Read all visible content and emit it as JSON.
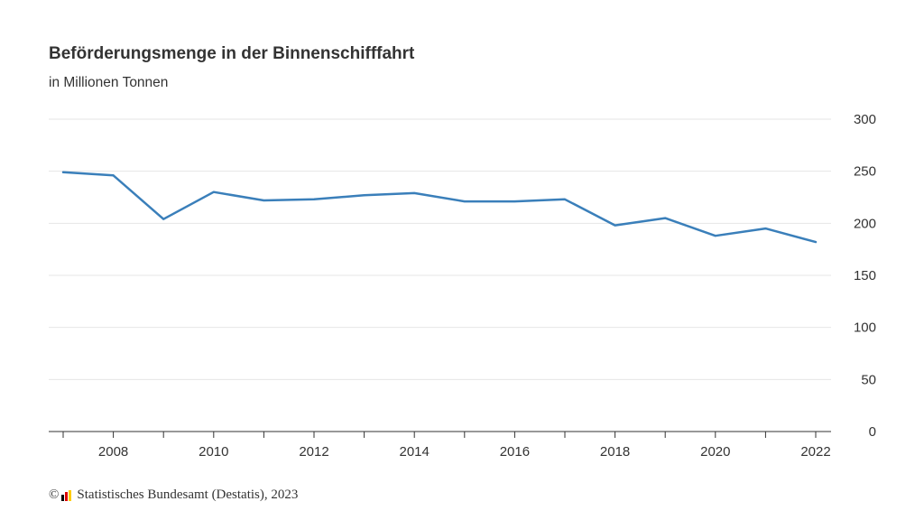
{
  "header": {
    "title": "Beförderungsmenge in der Binnenschifffahrt",
    "subtitle": "in Millionen Tonnen"
  },
  "footer": {
    "copyright_symbol": "©",
    "source": "Statistisches Bundesamt (Destatis), 2023",
    "logo_icon": "destatis-logo-icon",
    "logo_colors": [
      "#000000",
      "#dd0000",
      "#ffcc00"
    ]
  },
  "chart_data": {
    "type": "line",
    "title": "Beförderungsmenge in der Binnenschifffahrt",
    "subtitle": "in Millionen Tonnen",
    "xlabel": "",
    "ylabel": "",
    "x": [
      2007,
      2008,
      2009,
      2010,
      2011,
      2012,
      2013,
      2014,
      2015,
      2016,
      2017,
      2018,
      2019,
      2020,
      2021,
      2022
    ],
    "x_tick_labels": [
      "2008",
      "2010",
      "2012",
      "2014",
      "2016",
      "2018",
      "2020",
      "2022"
    ],
    "y_tick_labels": [
      "0",
      "50",
      "100",
      "150",
      "200",
      "250",
      "300"
    ],
    "ylim": [
      0,
      300
    ],
    "xlim": [
      2007,
      2022
    ],
    "y_axis_position": "right",
    "grid": true,
    "series": [
      {
        "color": "#3a7fba",
        "values": [
          249,
          246,
          204,
          230,
          222,
          223,
          227,
          229,
          221,
          221,
          223,
          198,
          205,
          188,
          195,
          182
        ]
      }
    ]
  }
}
